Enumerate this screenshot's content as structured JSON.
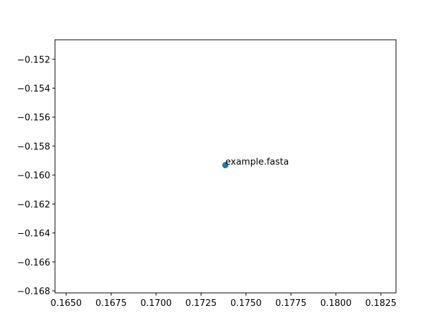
{
  "chart_data": {
    "type": "scatter",
    "title": "",
    "xlabel": "",
    "ylabel": "",
    "xlim": [
      0.16438,
      0.18334
    ],
    "ylim": [
      -0.16814,
      -0.15066
    ],
    "x_ticks": [
      0.165,
      0.1675,
      0.17,
      0.1725,
      0.175,
      0.1775,
      0.18,
      0.1825
    ],
    "x_tick_labels": [
      "0.1650",
      "0.1675",
      "0.1700",
      "0.1725",
      "0.1750",
      "0.1775",
      "0.1800",
      "0.1825"
    ],
    "y_ticks": [
      -0.152,
      -0.154,
      -0.156,
      -0.158,
      -0.16,
      -0.162,
      -0.164,
      -0.166,
      -0.168
    ],
    "y_tick_labels": [
      "−0.152",
      "−0.154",
      "−0.156",
      "−0.158",
      "−0.160",
      "−0.162",
      "−0.164",
      "−0.166",
      "−0.168"
    ],
    "grid": false,
    "series": [
      {
        "color": "#1f77b4",
        "points": [
          {
            "x": 0.17385,
            "y": -0.15932,
            "label": "example.fasta"
          }
        ]
      }
    ]
  }
}
